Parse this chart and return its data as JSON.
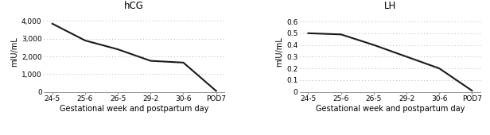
{
  "hcg": {
    "title": "hCG",
    "xlabel": "Gestational week and postpartum day",
    "ylabel": "mIU/mL",
    "x_labels": [
      "24-5",
      "25-6",
      "26-5",
      "29-2",
      "30-6",
      "POD7"
    ],
    "y_values": [
      3850,
      2900,
      2400,
      1750,
      1650,
      50
    ],
    "ylim": [
      0,
      4500
    ],
    "yticks": [
      0,
      1000,
      2000,
      3000,
      4000
    ],
    "ytick_labels": [
      "0",
      "1,000",
      "2,000",
      "3,000",
      "4,000"
    ]
  },
  "lh": {
    "title": "LH",
    "xlabel": "Gestational week and postpartum day",
    "ylabel": "mIU/mL",
    "x_labels": [
      "24-5",
      "25-6",
      "26-5",
      "29-2",
      "30-6",
      "POD7"
    ],
    "y_values": [
      0.5,
      0.49,
      0.4,
      0.3,
      0.2,
      0.01
    ],
    "ylim": [
      0,
      0.68
    ],
    "yticks": [
      0,
      0.1,
      0.2,
      0.3,
      0.4,
      0.5,
      0.6
    ],
    "ytick_labels": [
      "0",
      "0.1",
      "0.2",
      "0.3",
      "0.4",
      "0.5",
      "0.6"
    ]
  },
  "line_color": "#1a1a1a",
  "line_width": 1.5,
  "grid_color": "#b0b0b0",
  "grid_linestyle": ":",
  "background_color": "#ffffff",
  "title_fontsize": 8.5,
  "label_fontsize": 7,
  "tick_fontsize": 6.5,
  "xlabel_fontsize": 7
}
